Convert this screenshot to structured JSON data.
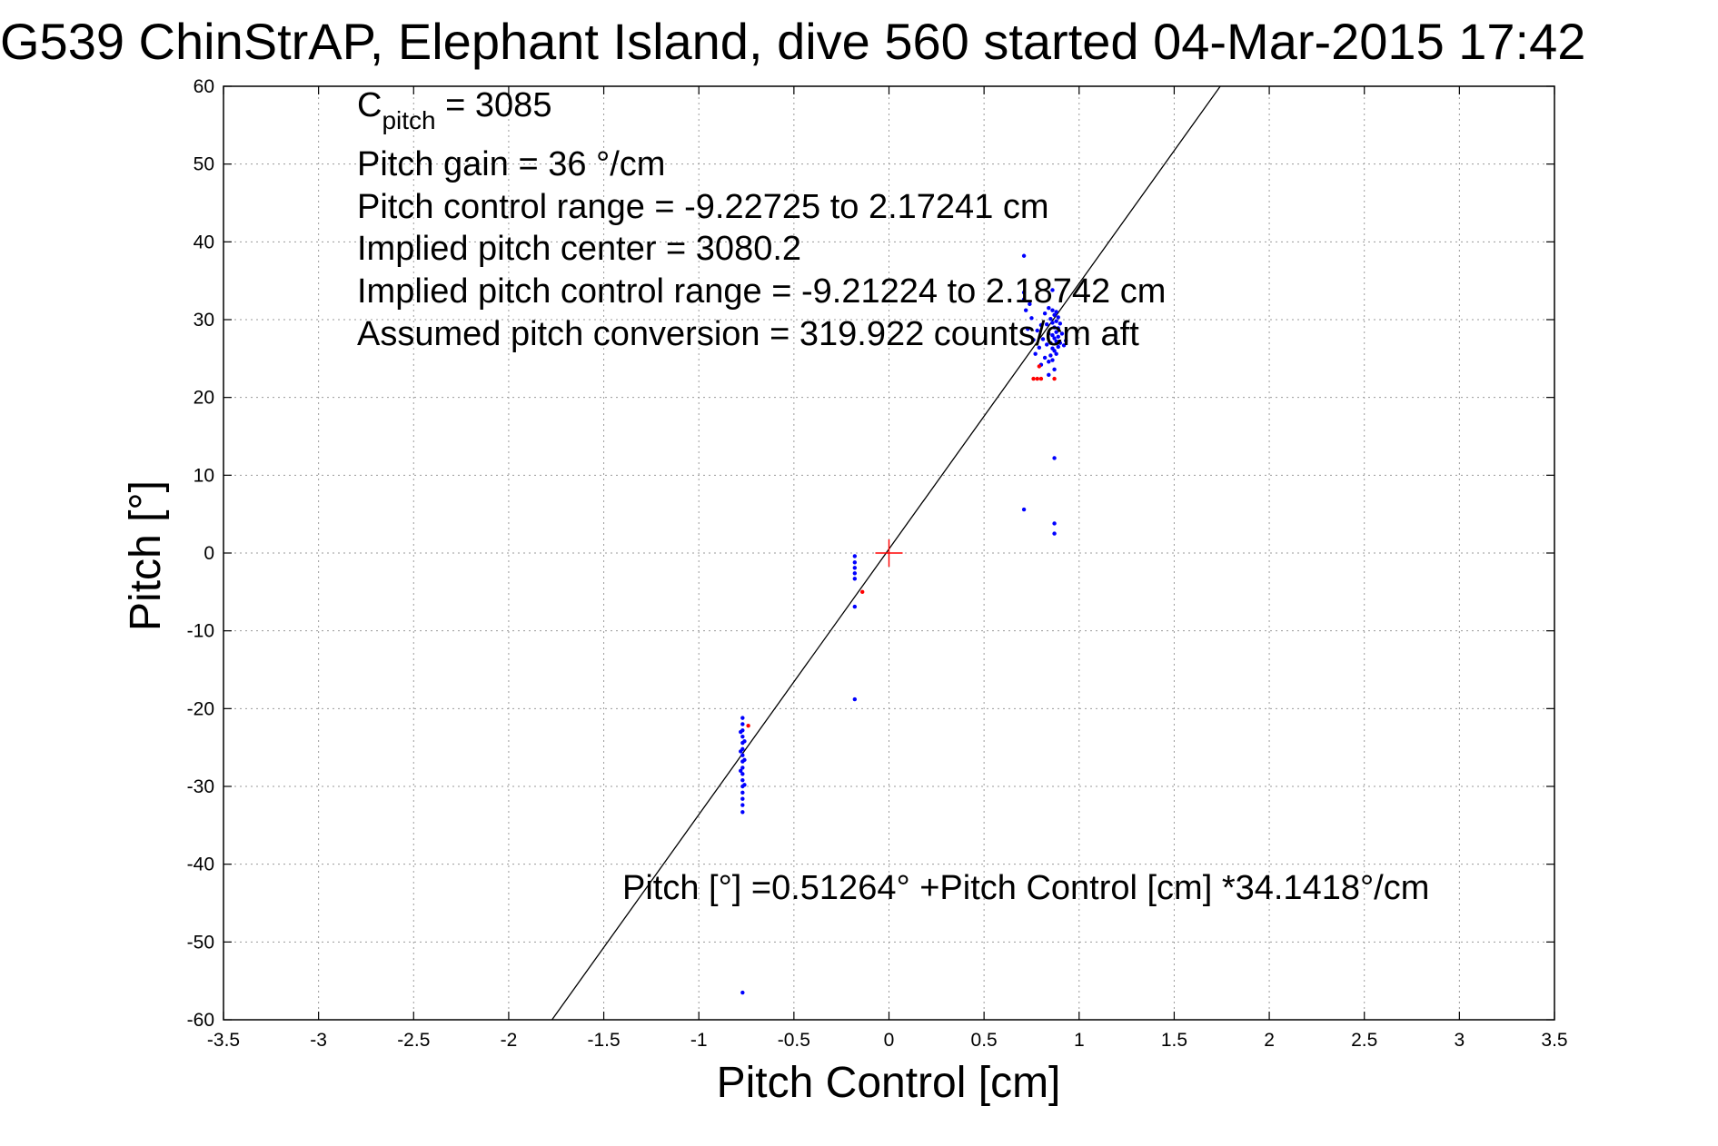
{
  "chart_data": {
    "type": "scatter",
    "title": "G539 ChinStrAP, Elephant Island, dive 560 started 04-Mar-2015 17:42",
    "xlabel": "Pitch Control [cm]",
    "ylabel": "Pitch [°]",
    "xlim": [
      -3.5,
      3.5
    ],
    "ylim": [
      -60,
      60
    ],
    "xticks": [
      -3.5,
      -3,
      -2.5,
      -2,
      -1.5,
      -1,
      -0.5,
      0,
      0.5,
      1,
      1.5,
      2,
      2.5,
      3,
      3.5
    ],
    "yticks": [
      -60,
      -50,
      -40,
      -30,
      -20,
      -10,
      0,
      10,
      20,
      30,
      40,
      50,
      60
    ],
    "x_tick_labels": [
      "-3.5",
      "-3",
      "-2.5",
      "-2",
      "-1.5",
      "-1",
      "-0.5",
      "0",
      "0.5",
      "1",
      "1.5",
      "2",
      "2.5",
      "3",
      "3.5"
    ],
    "y_tick_labels": [
      "-60",
      "-50",
      "-40",
      "-30",
      "-20",
      "-10",
      "0",
      "10",
      "20",
      "30",
      "40",
      "50",
      "60"
    ],
    "grid": true,
    "annotations": [
      {
        "text": "C",
        "sub": "pitch",
        "rest": " = 3085"
      },
      {
        "text": "Pitch gain = 36 °/cm"
      },
      {
        "text": "Pitch control range = -9.22725 to 2.17241 cm"
      },
      {
        "text": "Implied pitch center = 3080.2"
      },
      {
        "text": "Implied pitch control range = -9.21224 to 2.18742 cm"
      },
      {
        "text": "Assumed pitch conversion = 319.922 counts/cm aft"
      }
    ],
    "fit_label": "Pitch [°] =0.51264° +Pitch Control [cm] *34.1418°/cm",
    "fit_line": {
      "intercept": 0.51264,
      "slope": 34.1418
    },
    "center_marker": {
      "x": 0,
      "y": 0,
      "color": "#ff0000"
    },
    "series": [
      {
        "color": "#0000ff",
        "points": [
          [
            0.71,
            38.2
          ],
          [
            0.71,
            33.5
          ],
          [
            0.71,
            32.6
          ],
          [
            0.72,
            31.2
          ],
          [
            0.73,
            28.8
          ],
          [
            0.74,
            32.0
          ],
          [
            0.75,
            30.2
          ],
          [
            0.76,
            27.4
          ],
          [
            0.77,
            25.6
          ],
          [
            0.78,
            28.6
          ],
          [
            0.79,
            26.4
          ],
          [
            0.8,
            29.3
          ],
          [
            0.8,
            24.2
          ],
          [
            0.81,
            27.5
          ],
          [
            0.82,
            30.8
          ],
          [
            0.82,
            25.1
          ],
          [
            0.83,
            29.4
          ],
          [
            0.83,
            26.8
          ],
          [
            0.84,
            31.5
          ],
          [
            0.84,
            28.2
          ],
          [
            0.84,
            24.6
          ],
          [
            0.85,
            30.1
          ],
          [
            0.85,
            27.0
          ],
          [
            0.85,
            25.4
          ],
          [
            0.86,
            31.2
          ],
          [
            0.86,
            29.6
          ],
          [
            0.86,
            28.0
          ],
          [
            0.86,
            26.3
          ],
          [
            0.86,
            24.8
          ],
          [
            0.87,
            30.6
          ],
          [
            0.87,
            29.0
          ],
          [
            0.87,
            27.6
          ],
          [
            0.87,
            26.0
          ],
          [
            0.87,
            23.6
          ],
          [
            0.88,
            31.0
          ],
          [
            0.88,
            29.8
          ],
          [
            0.88,
            28.4
          ],
          [
            0.88,
            27.2
          ],
          [
            0.88,
            25.6
          ],
          [
            0.89,
            30.3
          ],
          [
            0.89,
            28.9
          ],
          [
            0.89,
            27.8
          ],
          [
            0.89,
            26.5
          ],
          [
            0.9,
            29.5
          ],
          [
            0.9,
            27.0
          ],
          [
            0.91,
            28.2
          ],
          [
            0.92,
            26.7
          ],
          [
            0.93,
            27.3
          ],
          [
            0.86,
            33.8
          ],
          [
            0.84,
            22.9
          ],
          [
            0.87,
            12.2
          ],
          [
            0.71,
            5.6
          ],
          [
            0.87,
            3.8
          ],
          [
            0.87,
            2.5
          ],
          [
            -0.18,
            -0.4
          ],
          [
            -0.18,
            -1.2
          ],
          [
            -0.18,
            -1.9
          ],
          [
            -0.18,
            -2.6
          ],
          [
            -0.18,
            -3.3
          ],
          [
            -0.18,
            -6.9
          ],
          [
            -0.18,
            -18.8
          ],
          [
            -0.77,
            -21.2
          ],
          [
            -0.77,
            -22.0
          ],
          [
            -0.77,
            -22.8
          ],
          [
            -0.77,
            -23.6
          ],
          [
            -0.77,
            -24.4
          ],
          [
            -0.77,
            -25.2
          ],
          [
            -0.77,
            -26.0
          ],
          [
            -0.77,
            -26.8
          ],
          [
            -0.77,
            -27.6
          ],
          [
            -0.77,
            -28.4
          ],
          [
            -0.77,
            -29.2
          ],
          [
            -0.77,
            -30.0
          ],
          [
            -0.77,
            -30.8
          ],
          [
            -0.77,
            -31.6
          ],
          [
            -0.77,
            -32.4
          ],
          [
            -0.77,
            -33.3
          ],
          [
            -0.78,
            -23.0
          ],
          [
            -0.78,
            -25.5
          ],
          [
            -0.78,
            -28.0
          ],
          [
            -0.76,
            -24.2
          ],
          [
            -0.76,
            -26.6
          ],
          [
            -0.76,
            -29.8
          ],
          [
            -0.77,
            -56.5
          ]
        ]
      },
      {
        "color": "#ff0000",
        "points": [
          [
            0.76,
            22.4
          ],
          [
            0.78,
            22.4
          ],
          [
            0.8,
            22.4
          ],
          [
            0.87,
            22.4
          ],
          [
            0.79,
            24.0
          ],
          [
            -0.14,
            -5.0
          ],
          [
            -0.74,
            -22.2
          ]
        ]
      }
    ]
  }
}
